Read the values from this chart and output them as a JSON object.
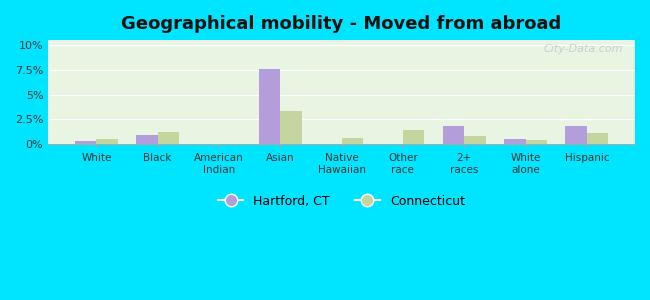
{
  "title": "Geographical mobility - Moved from abroad",
  "categories": [
    "White",
    "Black",
    "American\nIndian",
    "Asian",
    "Native\nHawaiian",
    "Other\nrace",
    "2+\nraces",
    "White\nalone",
    "Hispanic"
  ],
  "hartford": [
    0.3,
    0.9,
    0.0,
    7.6,
    0.0,
    0.0,
    1.8,
    0.5,
    1.8
  ],
  "connecticut": [
    0.5,
    1.2,
    0.0,
    3.3,
    0.6,
    1.4,
    0.8,
    0.4,
    1.1
  ],
  "hartford_color": "#b39ddb",
  "connecticut_color": "#c5d5a0",
  "bg_color": "#00e5ff",
  "yticks": [
    0,
    2.5,
    5.0,
    7.5,
    10.0
  ],
  "ytick_labels": [
    "0%",
    "2.5%",
    "5%",
    "7.5%",
    "10%"
  ],
  "ylim": [
    0,
    10.5
  ],
  "bar_width": 0.35,
  "legend_labels": [
    "Hartford, CT",
    "Connecticut"
  ],
  "watermark": "City-Data.com"
}
